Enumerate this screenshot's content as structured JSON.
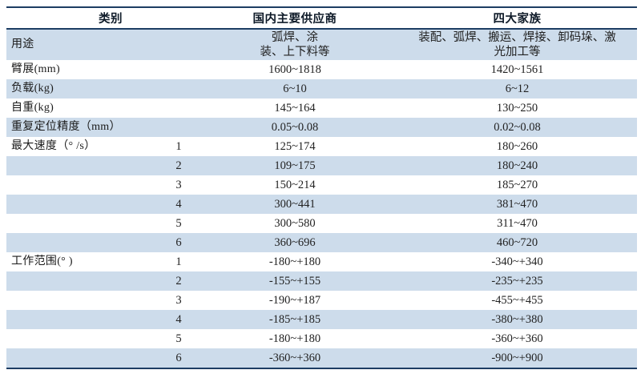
{
  "table": {
    "headers": {
      "category": "类别",
      "domestic": "国内主要供应商",
      "big4": "四大家族"
    },
    "rows": [
      {
        "label": "用途",
        "sub": "",
        "domestic": "弧焊、涂\n装、上下料等",
        "big4": "装配、弧焊、搬运、焊接、卸码垛、激\n光加工等"
      },
      {
        "label": "臂展(mm)",
        "sub": "",
        "domestic": "1600~1818",
        "big4": "1420~1561"
      },
      {
        "label": "负载(kg)",
        "sub": "",
        "domestic": "6~10",
        "big4": "6~12"
      },
      {
        "label": "自重(kg)",
        "sub": "",
        "domestic": "145~164",
        "big4": "130~250"
      },
      {
        "label": "重复定位精度（mm）",
        "sub": "",
        "domestic": "0.05~0.08",
        "big4": "0.02~0.08"
      },
      {
        "label": "最大速度（° /s）",
        "sub": "1",
        "domestic": "125~174",
        "big4": "180~260"
      },
      {
        "label": "",
        "sub": "2",
        "domestic": "109~175",
        "big4": "180~240"
      },
      {
        "label": "",
        "sub": "3",
        "domestic": "150~214",
        "big4": "185~270"
      },
      {
        "label": "",
        "sub": "4",
        "domestic": "300~441",
        "big4": "381~470"
      },
      {
        "label": "",
        "sub": "5",
        "domestic": "300~580",
        "big4": "311~470"
      },
      {
        "label": "",
        "sub": "6",
        "domestic": "360~696",
        "big4": "460~720"
      },
      {
        "label": "工作范围(° )",
        "sub": "1",
        "domestic": "-180~+180",
        "big4": "-340~+340"
      },
      {
        "label": "",
        "sub": "2",
        "domestic": "-155~+155",
        "big4": "-235~+235"
      },
      {
        "label": "",
        "sub": "3",
        "domestic": "-190~+187",
        "big4": "-455~+455"
      },
      {
        "label": "",
        "sub": "4",
        "domestic": "-185~+185",
        "big4": "-380~+380"
      },
      {
        "label": "",
        "sub": "5",
        "domestic": "-180~+180",
        "big4": "-360~+360"
      },
      {
        "label": "",
        "sub": "6",
        "domestic": "-360~+360",
        "big4": "-900~+900"
      }
    ]
  }
}
